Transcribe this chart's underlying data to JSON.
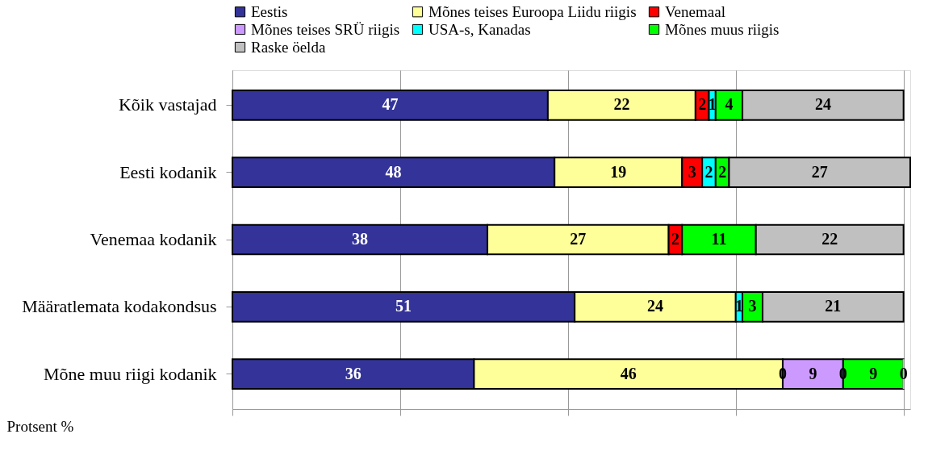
{
  "chart_data": {
    "type": "bar",
    "orientation": "horizontal",
    "stacked": true,
    "xlabel": "Protsent %",
    "categories": [
      "Kõik vastajad",
      "Eesti kodanik",
      "Venemaa kodanik",
      "Määratlemata kodakondsus",
      "Mõne muu riigi kodanik"
    ],
    "series": [
      {
        "name": "Eestis",
        "color": "#333399",
        "values": [
          47,
          48,
          38,
          51,
          36
        ],
        "value_labels": [
          "47",
          "48",
          "38",
          "51",
          "36"
        ]
      },
      {
        "name": "Mõnes teises Euroopa Liidu riigis",
        "color": "#ffff99",
        "values": [
          22,
          19,
          27,
          24,
          46
        ],
        "value_labels": [
          "22",
          "19",
          "27",
          "24",
          "46"
        ]
      },
      {
        "name": "Venemaal",
        "color": "#ff0000",
        "values": [
          2,
          3,
          2,
          0,
          0
        ],
        "value_labels": [
          "2",
          "3",
          "2",
          null,
          "0"
        ]
      },
      {
        "name": "Mõnes teises SRÜ riigis",
        "color": "#cc99ff",
        "values": [
          0,
          0,
          0,
          0,
          9
        ],
        "value_labels": [
          null,
          null,
          null,
          null,
          "9"
        ]
      },
      {
        "name": "USA-s, Kanadas",
        "color": "#00ffff",
        "values": [
          1,
          2,
          0,
          1,
          0
        ],
        "value_labels": [
          "1",
          "2",
          null,
          "1",
          "0"
        ]
      },
      {
        "name": "Mõnes muus riigis",
        "color": "#00ff00",
        "values": [
          4,
          2,
          11,
          3,
          9
        ],
        "value_labels": [
          "4",
          "2",
          "11",
          "3",
          "9"
        ]
      },
      {
        "name": "Raske öelda",
        "color": "#c0c0c0",
        "values": [
          24,
          27,
          22,
          21,
          0
        ],
        "value_labels": [
          "24",
          "27",
          "22",
          "21",
          "0"
        ]
      }
    ],
    "xlim": [
      0,
      101
    ],
    "xticks": [
      {
        "value": 0,
        "label": null
      },
      {
        "value": 25,
        "label": null
      },
      {
        "value": 50,
        "label": null
      },
      {
        "value": 75,
        "label": null
      },
      {
        "value": 100,
        "label": null
      }
    ],
    "grid": "x",
    "legend": "top",
    "tick_labels": "y"
  }
}
